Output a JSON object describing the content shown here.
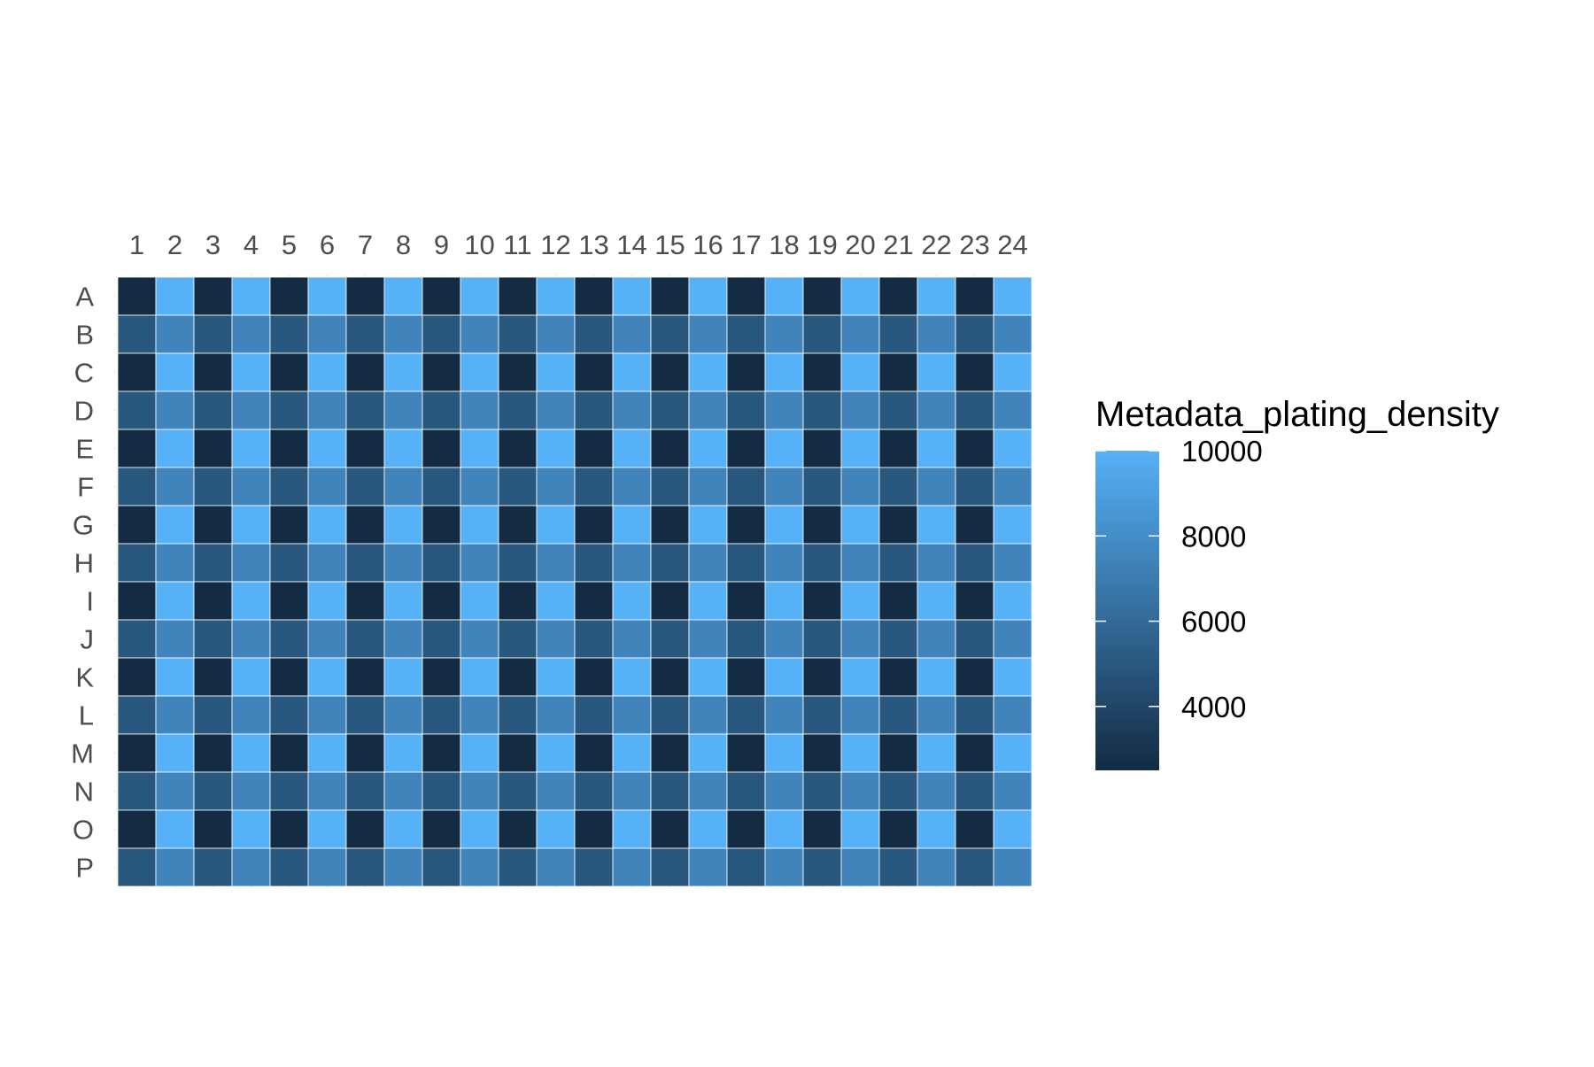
{
  "chart_data": {
    "type": "heatmap",
    "title": "",
    "xlabel": "",
    "ylabel": "",
    "x_categories": [
      "1",
      "2",
      "3",
      "4",
      "5",
      "6",
      "7",
      "8",
      "9",
      "10",
      "11",
      "12",
      "13",
      "14",
      "15",
      "16",
      "17",
      "18",
      "19",
      "20",
      "21",
      "22",
      "23",
      "24"
    ],
    "y_categories": [
      "A",
      "B",
      "C",
      "D",
      "E",
      "F",
      "G",
      "H",
      "I",
      "J",
      "K",
      "L",
      "M",
      "N",
      "O",
      "P"
    ],
    "x_axis_position": "top",
    "grid": false,
    "fill_variable": "Metadata_plating_density",
    "color_scale": {
      "low_value": 2500,
      "high_value": 10000,
      "low_color": "#132B43",
      "high_color": "#56B1F7",
      "breaks": [
        4000,
        6000,
        8000,
        10000
      ]
    },
    "legend": {
      "title": "Metadata_plating_density",
      "position": "right",
      "labels": [
        "10000",
        "8000",
        "6000",
        "4000"
      ]
    },
    "row_patterns": {
      "odd_rows_ACEGIKMO": [
        2500,
        10000
      ],
      "even_rows_BDFHJLNP": [
        5000,
        7500
      ]
    },
    "values": [
      [
        2500,
        10000,
        2500,
        10000,
        2500,
        10000,
        2500,
        10000,
        2500,
        10000,
        2500,
        10000,
        2500,
        10000,
        2500,
        10000,
        2500,
        10000,
        2500,
        10000,
        2500,
        10000,
        2500,
        10000
      ],
      [
        5000,
        7500,
        5000,
        7500,
        5000,
        7500,
        5000,
        7500,
        5000,
        7500,
        5000,
        7500,
        5000,
        7500,
        5000,
        7500,
        5000,
        7500,
        5000,
        7500,
        5000,
        7500,
        5000,
        7500
      ],
      [
        2500,
        10000,
        2500,
        10000,
        2500,
        10000,
        2500,
        10000,
        2500,
        10000,
        2500,
        10000,
        2500,
        10000,
        2500,
        10000,
        2500,
        10000,
        2500,
        10000,
        2500,
        10000,
        2500,
        10000
      ],
      [
        5000,
        7500,
        5000,
        7500,
        5000,
        7500,
        5000,
        7500,
        5000,
        7500,
        5000,
        7500,
        5000,
        7500,
        5000,
        7500,
        5000,
        7500,
        5000,
        7500,
        5000,
        7500,
        5000,
        7500
      ],
      [
        2500,
        10000,
        2500,
        10000,
        2500,
        10000,
        2500,
        10000,
        2500,
        10000,
        2500,
        10000,
        2500,
        10000,
        2500,
        10000,
        2500,
        10000,
        2500,
        10000,
        2500,
        10000,
        2500,
        10000
      ],
      [
        5000,
        7500,
        5000,
        7500,
        5000,
        7500,
        5000,
        7500,
        5000,
        7500,
        5000,
        7500,
        5000,
        7500,
        5000,
        7500,
        5000,
        7500,
        5000,
        7500,
        5000,
        7500,
        5000,
        7500
      ],
      [
        2500,
        10000,
        2500,
        10000,
        2500,
        10000,
        2500,
        10000,
        2500,
        10000,
        2500,
        10000,
        2500,
        10000,
        2500,
        10000,
        2500,
        10000,
        2500,
        10000,
        2500,
        10000,
        2500,
        10000
      ],
      [
        5000,
        7500,
        5000,
        7500,
        5000,
        7500,
        5000,
        7500,
        5000,
        7500,
        5000,
        7500,
        5000,
        7500,
        5000,
        7500,
        5000,
        7500,
        5000,
        7500,
        5000,
        7500,
        5000,
        7500
      ],
      [
        2500,
        10000,
        2500,
        10000,
        2500,
        10000,
        2500,
        10000,
        2500,
        10000,
        2500,
        10000,
        2500,
        10000,
        2500,
        10000,
        2500,
        10000,
        2500,
        10000,
        2500,
        10000,
        2500,
        10000
      ],
      [
        5000,
        7500,
        5000,
        7500,
        5000,
        7500,
        5000,
        7500,
        5000,
        7500,
        5000,
        7500,
        5000,
        7500,
        5000,
        7500,
        5000,
        7500,
        5000,
        7500,
        5000,
        7500,
        5000,
        7500
      ],
      [
        2500,
        10000,
        2500,
        10000,
        2500,
        10000,
        2500,
        10000,
        2500,
        10000,
        2500,
        10000,
        2500,
        10000,
        2500,
        10000,
        2500,
        10000,
        2500,
        10000,
        2500,
        10000,
        2500,
        10000
      ],
      [
        5000,
        7500,
        5000,
        7500,
        5000,
        7500,
        5000,
        7500,
        5000,
        7500,
        5000,
        7500,
        5000,
        7500,
        5000,
        7500,
        5000,
        7500,
        5000,
        7500,
        5000,
        7500,
        5000,
        7500
      ],
      [
        2500,
        10000,
        2500,
        10000,
        2500,
        10000,
        2500,
        10000,
        2500,
        10000,
        2500,
        10000,
        2500,
        10000,
        2500,
        10000,
        2500,
        10000,
        2500,
        10000,
        2500,
        10000,
        2500,
        10000
      ],
      [
        5000,
        7500,
        5000,
        7500,
        5000,
        7500,
        5000,
        7500,
        5000,
        7500,
        5000,
        7500,
        5000,
        7500,
        5000,
        7500,
        5000,
        7500,
        5000,
        7500,
        5000,
        7500,
        5000,
        7500
      ],
      [
        2500,
        10000,
        2500,
        10000,
        2500,
        10000,
        2500,
        10000,
        2500,
        10000,
        2500,
        10000,
        2500,
        10000,
        2500,
        10000,
        2500,
        10000,
        2500,
        10000,
        2500,
        10000,
        2500,
        10000
      ],
      [
        5000,
        7500,
        5000,
        7500,
        5000,
        7500,
        5000,
        7500,
        5000,
        7500,
        5000,
        7500,
        5000,
        7500,
        5000,
        7500,
        5000,
        7500,
        5000,
        7500,
        5000,
        7500,
        5000,
        7500
      ]
    ]
  }
}
